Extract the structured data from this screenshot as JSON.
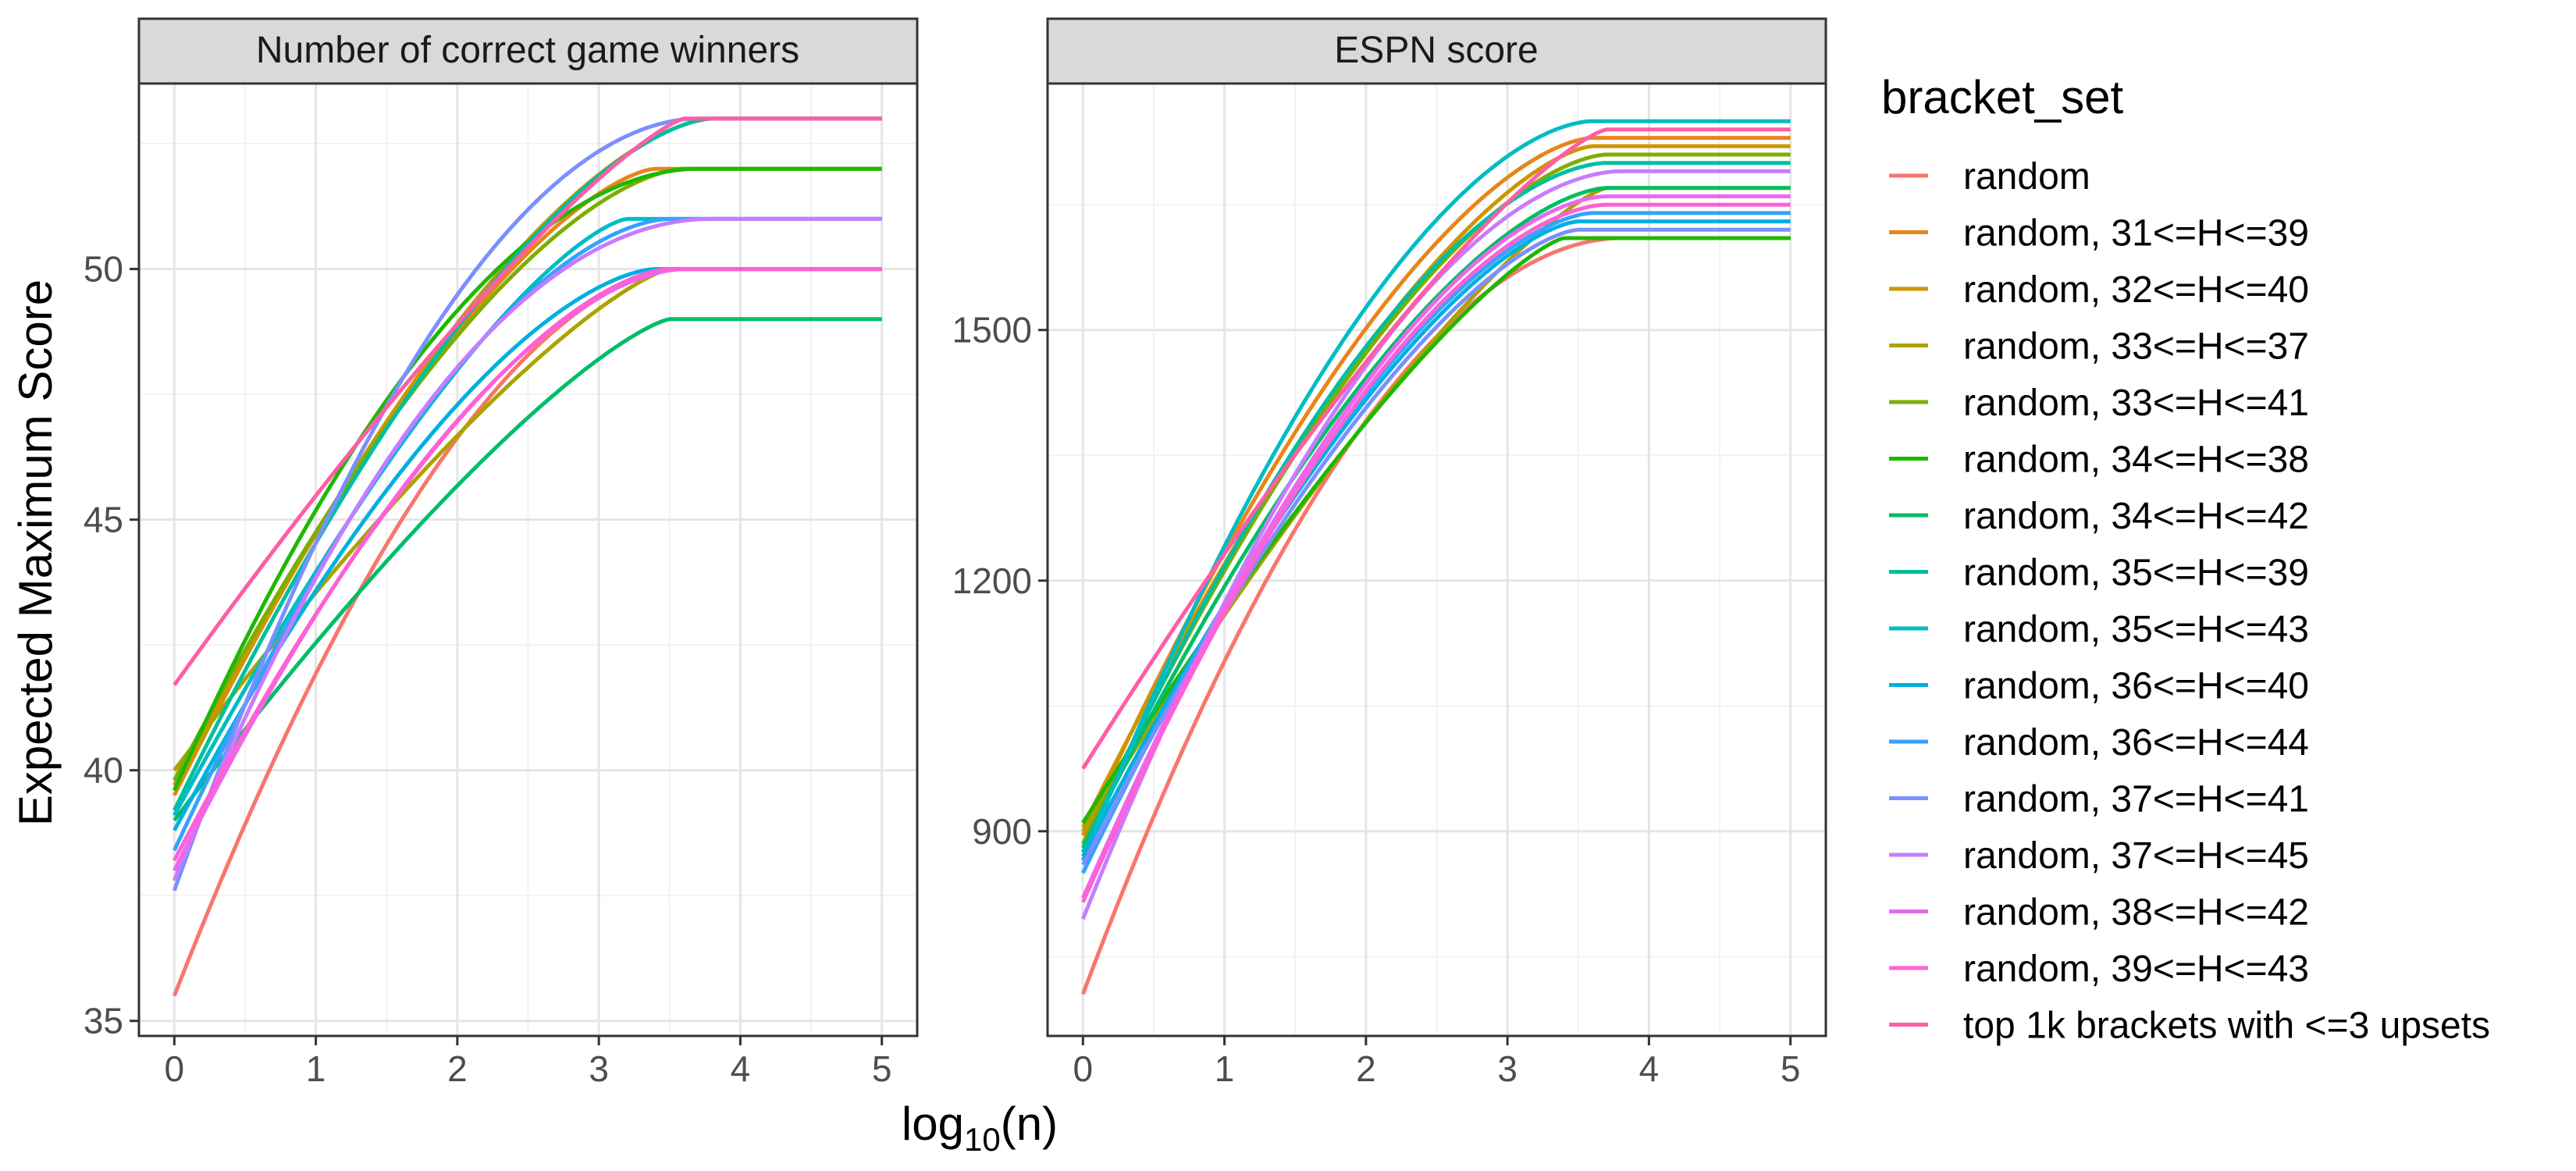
{
  "ylabel": "Expected Maximum Score",
  "xlabel": {
    "base": "log",
    "sub": "10",
    "rest": "(n)"
  },
  "legend": {
    "title": "bracket_set",
    "position": "right",
    "entries": [
      {
        "label": "random",
        "color": "#F8766D"
      },
      {
        "label": "random, 31<=H<=39",
        "color": "#E6861A"
      },
      {
        "label": "random, 32<=H<=40",
        "color": "#CD9600"
      },
      {
        "label": "random, 33<=H<=37",
        "color": "#ABA300"
      },
      {
        "label": "random, 33<=H<=41",
        "color": "#7CAE00"
      },
      {
        "label": "random, 34<=H<=38",
        "color": "#1FB800"
      },
      {
        "label": "random, 34<=H<=42",
        "color": "#00BE67"
      },
      {
        "label": "random, 35<=H<=39",
        "color": "#00BFA0"
      },
      {
        "label": "random, 35<=H<=43",
        "color": "#00BCC4"
      },
      {
        "label": "random, 36<=H<=40",
        "color": "#00B0E0"
      },
      {
        "label": "random, 36<=H<=44",
        "color": "#35A2FF"
      },
      {
        "label": "random, 37<=H<=41",
        "color": "#7B8FFF"
      },
      {
        "label": "random, 37<=H<=45",
        "color": "#C77CFF"
      },
      {
        "label": "random, 38<=H<=42",
        "color": "#EA68EF"
      },
      {
        "label": "random, 39<=H<=43",
        "color": "#FF60D5"
      },
      {
        "label": "top 1k brackets with <=3 upsets",
        "color": "#FF5DA6"
      }
    ]
  },
  "chart_data": [
    {
      "type": "line",
      "title": "Number of correct game winners",
      "xlim": [
        -0.25,
        5.25
      ],
      "ylim": [
        34.7,
        53.7
      ],
      "xticks": [
        0,
        1,
        2,
        3,
        4,
        5
      ],
      "yticks": [
        35,
        40,
        45,
        50
      ],
      "grid": true,
      "series": [
        {
          "name": "random",
          "start": 35.5,
          "end": 50,
          "x_sat": 3.6,
          "shape": 1.8
        },
        {
          "name": "random, 31<=H<=39",
          "start": 39.7,
          "end": 52,
          "x_sat": 3.4,
          "shape": 1.5
        },
        {
          "name": "random, 32<=H<=40",
          "start": 39.5,
          "end": 53,
          "x_sat": 3.8,
          "shape": 1.6
        },
        {
          "name": "random, 33<=H<=37",
          "start": 40.0,
          "end": 50,
          "x_sat": 3.5,
          "shape": 1.3
        },
        {
          "name": "random, 33<=H<=41",
          "start": 39.8,
          "end": 52,
          "x_sat": 3.6,
          "shape": 1.6
        },
        {
          "name": "random, 34<=H<=38",
          "start": 39.6,
          "end": 52,
          "x_sat": 3.7,
          "shape": 1.9
        },
        {
          "name": "random, 34<=H<=42",
          "start": 39.0,
          "end": 49,
          "x_sat": 3.5,
          "shape": 1.3
        },
        {
          "name": "random, 35<=H<=39",
          "start": 39.2,
          "end": 53,
          "x_sat": 3.8,
          "shape": 1.6
        },
        {
          "name": "random, 35<=H<=43",
          "start": 39.1,
          "end": 51,
          "x_sat": 3.2,
          "shape": 1.4
        },
        {
          "name": "random, 36<=H<=40",
          "start": 38.8,
          "end": 50,
          "x_sat": 3.4,
          "shape": 1.6
        },
        {
          "name": "random, 36<=H<=44",
          "start": 38.4,
          "end": 51,
          "x_sat": 3.5,
          "shape": 1.7
        },
        {
          "name": "random, 37<=H<=41",
          "start": 37.6,
          "end": 53,
          "x_sat": 3.7,
          "shape": 1.9
        },
        {
          "name": "random, 37<=H<=45",
          "start": 37.8,
          "end": 51,
          "x_sat": 3.8,
          "shape": 2.0
        },
        {
          "name": "random, 38<=H<=42",
          "start": 38.0,
          "end": 50,
          "x_sat": 3.6,
          "shape": 1.7
        },
        {
          "name": "random, 39<=H<=43",
          "start": 38.2,
          "end": 50,
          "x_sat": 3.5,
          "shape": 1.6
        },
        {
          "name": "top 1k brackets with <=3 upsets",
          "start": 41.7,
          "end": 53,
          "x_sat": 3.6,
          "shape": 1.25
        }
      ]
    },
    {
      "type": "line",
      "title": "ESPN score",
      "xlim": [
        -0.25,
        5.25
      ],
      "ylim": [
        655,
        1795
      ],
      "xticks": [
        0,
        1,
        2,
        3,
        4,
        5
      ],
      "yticks": [
        900,
        1200,
        1500
      ],
      "grid": true,
      "series": [
        {
          "name": "random",
          "start": 705,
          "end": 1610,
          "x_sat": 3.8,
          "shape": 1.9
        },
        {
          "name": "random, 31<=H<=39",
          "start": 895,
          "end": 1730,
          "x_sat": 3.6,
          "shape": 1.6
        },
        {
          "name": "random, 32<=H<=40",
          "start": 905,
          "end": 1720,
          "x_sat": 3.6,
          "shape": 1.5
        },
        {
          "name": "random, 33<=H<=37",
          "start": 900,
          "end": 1670,
          "x_sat": 3.7,
          "shape": 1.3
        },
        {
          "name": "random, 33<=H<=41",
          "start": 885,
          "end": 1710,
          "x_sat": 3.7,
          "shape": 1.6
        },
        {
          "name": "random, 34<=H<=38",
          "start": 910,
          "end": 1610,
          "x_sat": 3.4,
          "shape": 1.3
        },
        {
          "name": "random, 34<=H<=42",
          "start": 880,
          "end": 1670,
          "x_sat": 3.7,
          "shape": 1.6
        },
        {
          "name": "random, 35<=H<=39",
          "start": 875,
          "end": 1700,
          "x_sat": 3.7,
          "shape": 1.7
        },
        {
          "name": "random, 35<=H<=43",
          "start": 865,
          "end": 1750,
          "x_sat": 3.6,
          "shape": 1.7
        },
        {
          "name": "random, 36<=H<=40",
          "start": 870,
          "end": 1630,
          "x_sat": 3.5,
          "shape": 1.5
        },
        {
          "name": "random, 36<=H<=44",
          "start": 850,
          "end": 1640,
          "x_sat": 3.6,
          "shape": 1.6
        },
        {
          "name": "random, 37<=H<=41",
          "start": 860,
          "end": 1620,
          "x_sat": 3.5,
          "shape": 1.5
        },
        {
          "name": "random, 37<=H<=45",
          "start": 795,
          "end": 1690,
          "x_sat": 3.8,
          "shape": 1.8
        },
        {
          "name": "random, 38<=H<=42",
          "start": 820,
          "end": 1660,
          "x_sat": 3.7,
          "shape": 1.7
        },
        {
          "name": "random, 39<=H<=43",
          "start": 815,
          "end": 1650,
          "x_sat": 3.7,
          "shape": 1.7
        },
        {
          "name": "top 1k brackets with <=3 upsets",
          "start": 975,
          "end": 1740,
          "x_sat": 3.7,
          "shape": 1.3
        }
      ]
    }
  ]
}
